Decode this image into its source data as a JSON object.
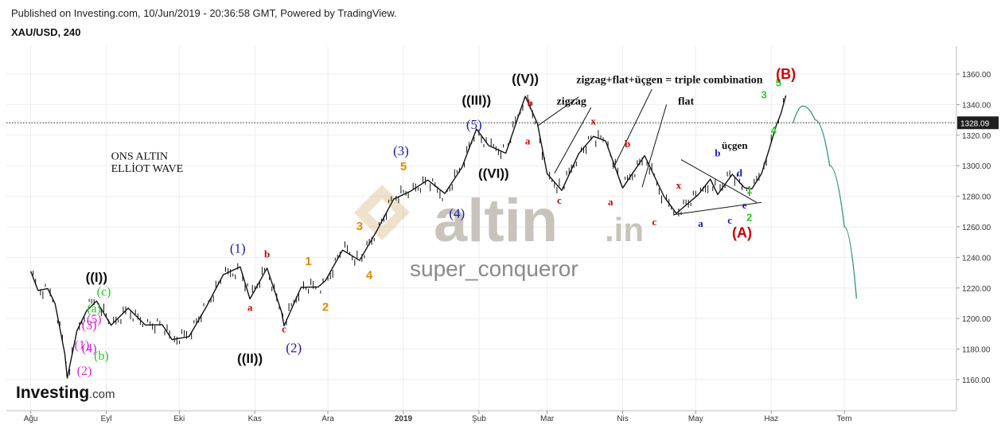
{
  "header": {
    "published": "Published on Investing.com, 10/Jun/2019 - 20:36:58 GMT, Powered by TradingView.",
    "symbol": "XAU/USD, 240"
  },
  "watermark": {
    "brand_main": "altin",
    "brand_ext": ".in",
    "user": "super_conqueror",
    "logo": "Investing",
    "logo_ext": ".com"
  },
  "colors": {
    "red": "#cc0000",
    "blue": "#1a1aaa",
    "orange": "#e38a00",
    "green": "#22cc22",
    "magenta": "#dd22dd",
    "projection": "#3a9a8a"
  },
  "chart_data": {
    "type": "line",
    "title": "XAU/USD, 240",
    "x_ticks": [
      "Ağu",
      "Eyl",
      "Eki",
      "Kas",
      "Ara",
      "2019",
      "Şub",
      "Mar",
      "Nis",
      "May",
      "Haz",
      "Tem"
    ],
    "y_ticks": [
      1160,
      1180,
      1200,
      1220,
      1240,
      1260,
      1280,
      1300,
      1320,
      1340,
      1360
    ],
    "ylim": [
      1150,
      1370
    ],
    "current_price": 1328.09,
    "current_price_label": "1328.09",
    "series": [
      {
        "x": [
          "2018-08-01",
          "2018-08-04",
          "2018-08-08",
          "2018-08-11",
          "2018-08-15",
          "2018-08-16",
          "2018-08-20",
          "2018-08-24",
          "2018-08-28",
          "2018-09-03",
          "2018-09-10",
          "2018-09-17",
          "2018-09-24",
          "2018-09-28",
          "2018-10-05",
          "2018-10-12",
          "2018-10-19",
          "2018-10-26",
          "2018-10-30",
          "2018-11-06",
          "2018-11-12",
          "2018-11-13",
          "2018-11-20",
          "2018-11-27",
          "2018-11-30",
          "2018-12-07",
          "2018-12-14",
          "2018-12-21",
          "2018-12-28",
          "2019-01-04",
          "2019-01-11",
          "2019-01-18",
          "2019-01-25",
          "2019-01-31",
          "2019-02-05",
          "2019-02-12",
          "2019-02-20",
          "2019-02-25",
          "2019-03-01",
          "2019-03-07",
          "2019-03-14",
          "2019-03-20",
          "2019-03-25",
          "2019-04-01",
          "2019-04-10",
          "2019-04-18",
          "2019-04-23",
          "2019-05-02",
          "2019-05-07",
          "2019-05-10",
          "2019-05-16",
          "2019-05-21",
          "2019-05-24",
          "2019-05-28",
          "2019-05-31",
          "2019-06-03",
          "2019-06-05",
          "2019-06-07"
        ],
        "values": [
          1231,
          1219,
          1219,
          1208,
          1178,
          1161,
          1191,
          1207,
          1212,
          1195,
          1205,
          1197,
          1196,
          1185,
          1190,
          1208,
          1228,
          1232,
          1214,
          1233,
          1203,
          1197,
          1221,
          1220,
          1223,
          1246,
          1238,
          1256,
          1280,
          1284,
          1290,
          1280,
          1300,
          1324,
          1312,
          1310,
          1346,
          1327,
          1293,
          1285,
          1308,
          1318,
          1318,
          1286,
          1306,
          1278,
          1270,
          1281,
          1290,
          1283,
          1295,
          1285,
          1283,
          1296,
          1310,
          1325,
          1336,
          1346
        ]
      }
    ],
    "projection": {
      "x": [
        "2019-06-10",
        "2019-06-14",
        "2019-06-19",
        "2019-06-25",
        "2019-07-01",
        "2019-07-06"
      ],
      "values": [
        1328,
        1339,
        1330,
        1300,
        1260,
        1213
      ]
    },
    "annotations": [
      {
        "text": "ONS ALTIN",
        "x": "2018-09-03",
        "y": 1304,
        "color": "#111111",
        "font": "serif",
        "size": 14,
        "weight": "normal"
      },
      {
        "text": "ELLİOT WAVE",
        "x": "2018-09-03",
        "y": 1296,
        "color": "#111111",
        "font": "serif",
        "size": 14,
        "weight": "normal"
      },
      {
        "text": "zigzag+flat+üçgen = triple combination",
        "x": "2019-03-13",
        "y": 1354,
        "color": "#111111",
        "font": "serif",
        "size": 14,
        "weight": "bold"
      },
      {
        "text": "zigzag",
        "x": "2019-03-11",
        "y": 1340,
        "color": "#111111",
        "font": "serif",
        "size": 14,
        "weight": "bold"
      },
      {
        "text": "flat",
        "x": "2019-04-27",
        "y": 1340,
        "color": "#111111",
        "font": "serif",
        "size": 14,
        "weight": "bold"
      },
      {
        "text": "üçgen",
        "x": "2019-05-17",
        "y": 1311,
        "color": "#111111",
        "font": "serif",
        "size": 13,
        "weight": "bold"
      },
      {
        "text": "((I))",
        "x": "2018-08-28",
        "y": 1224,
        "color": "#111111",
        "font": "sans",
        "size": 17,
        "weight": "bold"
      },
      {
        "text": "((II))",
        "x": "2018-10-30",
        "y": 1171,
        "color": "#111111",
        "font": "sans",
        "size": 17,
        "weight": "bold"
      },
      {
        "text": "((III))",
        "x": "2019-01-31",
        "y": 1340,
        "color": "#111111",
        "font": "sans",
        "size": 17,
        "weight": "bold"
      },
      {
        "text": "((V))",
        "x": "2019-02-20",
        "y": 1354,
        "color": "#111111",
        "font": "sans",
        "size": 17,
        "weight": "bold"
      },
      {
        "text": "((VI))",
        "x": "2019-02-07",
        "y": 1292,
        "color": "#111111",
        "font": "sans",
        "size": 17,
        "weight": "bold"
      },
      {
        "text": "(1)",
        "x": "2018-10-25",
        "y": 1243,
        "color": "#1a1aaa",
        "font": "serif",
        "size": 17,
        "weight": "normal"
      },
      {
        "text": "(2)",
        "x": "2018-11-17",
        "y": 1178,
        "color": "#1a1aaa",
        "font": "serif",
        "size": 17,
        "weight": "normal"
      },
      {
        "text": "(3)",
        "x": "2018-12-31",
        "y": 1307,
        "color": "#1a1aaa",
        "font": "serif",
        "size": 17,
        "weight": "normal"
      },
      {
        "text": "(4)",
        "x": "2019-01-23",
        "y": 1266,
        "color": "#1a1aaa",
        "font": "serif",
        "size": 17,
        "weight": "normal"
      },
      {
        "text": "(5)",
        "x": "2019-01-30",
        "y": 1324,
        "color": "#1a1aaa",
        "font": "serif",
        "size": 17,
        "weight": "normal"
      },
      {
        "text": "(2)",
        "x": "2018-08-23",
        "y": 1163,
        "color": "#dd22dd",
        "font": "serif",
        "size": 16,
        "weight": "normal"
      },
      {
        "text": "(1)",
        "x": "2018-08-22",
        "y": 1180,
        "color": "#dd22dd",
        "font": "serif",
        "size": 16,
        "weight": "normal"
      },
      {
        "text": "(3)",
        "x": "2018-08-25",
        "y": 1193,
        "color": "#dd22dd",
        "font": "serif",
        "size": 16,
        "weight": "normal"
      },
      {
        "text": "(4)",
        "x": "2018-08-25",
        "y": 1178,
        "color": "#dd22dd",
        "font": "serif",
        "size": 16,
        "weight": "normal"
      },
      {
        "text": "(5)",
        "x": "2018-08-27",
        "y": 1197,
        "color": "#dd22dd",
        "font": "serif",
        "size": 16,
        "weight": "normal"
      },
      {
        "text": "(a)",
        "x": "2018-08-27",
        "y": 1204,
        "color": "#22cc22",
        "font": "serif",
        "size": 16,
        "weight": "normal"
      },
      {
        "text": "(b)",
        "x": "2018-08-30",
        "y": 1173,
        "color": "#22cc22",
        "font": "serif",
        "size": 16,
        "weight": "normal"
      },
      {
        "text": "(c)",
        "x": "2018-08-31",
        "y": 1215,
        "color": "#22cc22",
        "font": "serif",
        "size": 16,
        "weight": "normal"
      },
      {
        "text": "a",
        "x": "2018-10-30",
        "y": 1205,
        "color": "#cc0000",
        "font": "serif",
        "size": 13,
        "weight": "bold"
      },
      {
        "text": "b",
        "x": "2018-11-06",
        "y": 1240,
        "color": "#cc0000",
        "font": "serif",
        "size": 13,
        "weight": "bold"
      },
      {
        "text": "c",
        "x": "2018-11-13",
        "y": 1191,
        "color": "#cc0000",
        "font": "serif",
        "size": 13,
        "weight": "bold"
      },
      {
        "text": "1",
        "x": "2018-11-23",
        "y": 1235,
        "color": "#e38a00",
        "font": "sans",
        "size": 15,
        "weight": "bold"
      },
      {
        "text": "2",
        "x": "2018-11-30",
        "y": 1205,
        "color": "#e38a00",
        "font": "sans",
        "size": 15,
        "weight": "bold"
      },
      {
        "text": "3",
        "x": "2018-12-14",
        "y": 1258,
        "color": "#e38a00",
        "font": "sans",
        "size": 15,
        "weight": "bold"
      },
      {
        "text": "4",
        "x": "2018-12-18",
        "y": 1226,
        "color": "#e38a00",
        "font": "sans",
        "size": 15,
        "weight": "bold"
      },
      {
        "text": "5",
        "x": "2019-01-01",
        "y": 1297,
        "color": "#e38a00",
        "font": "sans",
        "size": 15,
        "weight": "bold"
      },
      {
        "text": "b",
        "x": "2019-02-22",
        "y": 1339,
        "color": "#cc0000",
        "font": "serif",
        "size": 13,
        "weight": "bold"
      },
      {
        "text": "a",
        "x": "2019-02-21",
        "y": 1314,
        "color": "#cc0000",
        "font": "serif",
        "size": 13,
        "weight": "bold"
      },
      {
        "text": "c",
        "x": "2019-03-06",
        "y": 1275,
        "color": "#cc0000",
        "font": "serif",
        "size": 13,
        "weight": "bold"
      },
      {
        "text": "x",
        "x": "2019-03-20",
        "y": 1327,
        "color": "#cc0000",
        "font": "serif",
        "size": 13,
        "weight": "bold"
      },
      {
        "text": "a",
        "x": "2019-03-27",
        "y": 1274,
        "color": "#cc0000",
        "font": "serif",
        "size": 13,
        "weight": "bold"
      },
      {
        "text": "b",
        "x": "2019-04-03",
        "y": 1312,
        "color": "#cc0000",
        "font": "serif",
        "size": 13,
        "weight": "bold"
      },
      {
        "text": "c",
        "x": "2019-04-14",
        "y": 1261,
        "color": "#cc0000",
        "font": "serif",
        "size": 13,
        "weight": "bold"
      },
      {
        "text": "x",
        "x": "2019-04-24",
        "y": 1285,
        "color": "#cc0000",
        "font": "serif",
        "size": 13,
        "weight": "bold"
      },
      {
        "text": "b",
        "x": "2019-05-10",
        "y": 1306,
        "color": "#1a1aaa",
        "font": "serif",
        "size": 13,
        "weight": "bold"
      },
      {
        "text": "a",
        "x": "2019-05-03",
        "y": 1260,
        "color": "#1a1aaa",
        "font": "serif",
        "size": 13,
        "weight": "bold"
      },
      {
        "text": "c",
        "x": "2019-05-15",
        "y": 1262,
        "color": "#1a1aaa",
        "font": "serif",
        "size": 13,
        "weight": "bold"
      },
      {
        "text": "d",
        "x": "2019-05-19",
        "y": 1293,
        "color": "#1a1aaa",
        "font": "serif",
        "size": 13,
        "weight": "bold"
      },
      {
        "text": "e",
        "x": "2019-05-21",
        "y": 1272,
        "color": "#1a1aaa",
        "font": "serif",
        "size": 13,
        "weight": "bold"
      },
      {
        "text": "1",
        "x": "2019-05-23",
        "y": 1282,
        "color": "#22cc22",
        "font": "sans",
        "size": 13,
        "weight": "bold"
      },
      {
        "text": "2",
        "x": "2019-05-23",
        "y": 1264,
        "color": "#22cc22",
        "font": "sans",
        "size": 13,
        "weight": "bold"
      },
      {
        "text": "3",
        "x": "2019-05-29",
        "y": 1344,
        "color": "#22cc22",
        "font": "sans",
        "size": 13,
        "weight": "bold"
      },
      {
        "text": "4",
        "x": "2019-06-02",
        "y": 1321,
        "color": "#22cc22",
        "font": "sans",
        "size": 13,
        "weight": "bold"
      },
      {
        "text": "5",
        "x": "2019-06-04",
        "y": 1352,
        "color": "#22cc22",
        "font": "sans",
        "size": 13,
        "weight": "bold"
      },
      {
        "text": "(A)",
        "x": "2019-05-20",
        "y": 1253,
        "color": "#cc0000",
        "font": "sans",
        "size": 18,
        "weight": "bold"
      },
      {
        "text": "(B)",
        "x": "2019-06-07",
        "y": 1357,
        "color": "#cc0000",
        "font": "sans",
        "size": 18,
        "weight": "bold"
      }
    ],
    "pointer_lines": [
      {
        "x1": "2019-02-25",
        "y1": 1326,
        "x2": "2019-03-14",
        "y2": 1345
      },
      {
        "x1": "2019-03-04",
        "y1": 1295,
        "x2": "2019-03-19",
        "y2": 1338
      },
      {
        "x1": "2019-03-28",
        "y1": 1298,
        "x2": "2019-04-13",
        "y2": 1350
      },
      {
        "x1": "2019-04-09",
        "y1": 1286,
        "x2": "2019-04-19",
        "y2": 1340
      }
    ],
    "triangle_lines": [
      {
        "x1": "2019-04-25",
        "y1": 1304,
        "x2": "2019-05-26",
        "y2": 1276
      },
      {
        "x1": "2019-04-22",
        "y1": 1268,
        "x2": "2019-05-28",
        "y2": 1276
      }
    ]
  }
}
